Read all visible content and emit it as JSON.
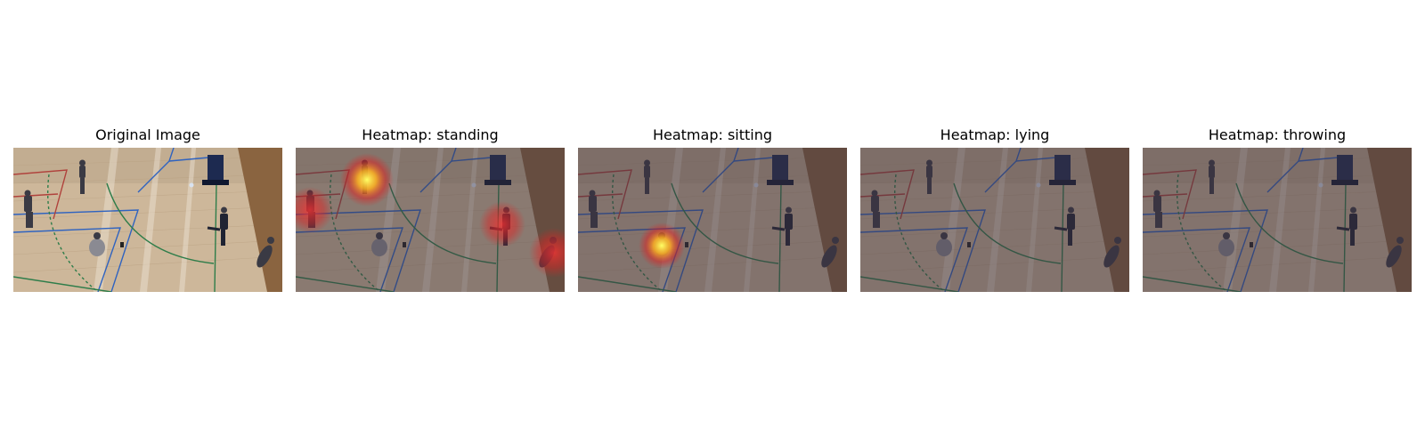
{
  "panels": [
    {
      "title": "Original Image",
      "heatmap": null
    },
    {
      "title": "Heatmap: standing",
      "heatmap": "standing"
    },
    {
      "title": "Heatmap: sitting",
      "heatmap": "sitting"
    },
    {
      "title": "Heatmap: lying",
      "heatmap": "lying"
    },
    {
      "title": "Heatmap: throwing",
      "heatmap": "throwing"
    }
  ],
  "colors": {
    "floor": "#cdb79a",
    "line_blue": "#2f63c0",
    "line_green": "#2e7d4a",
    "line_red": "#b0423c",
    "heat_hot": "#ffff66",
    "heat_cold": "#e02020"
  }
}
